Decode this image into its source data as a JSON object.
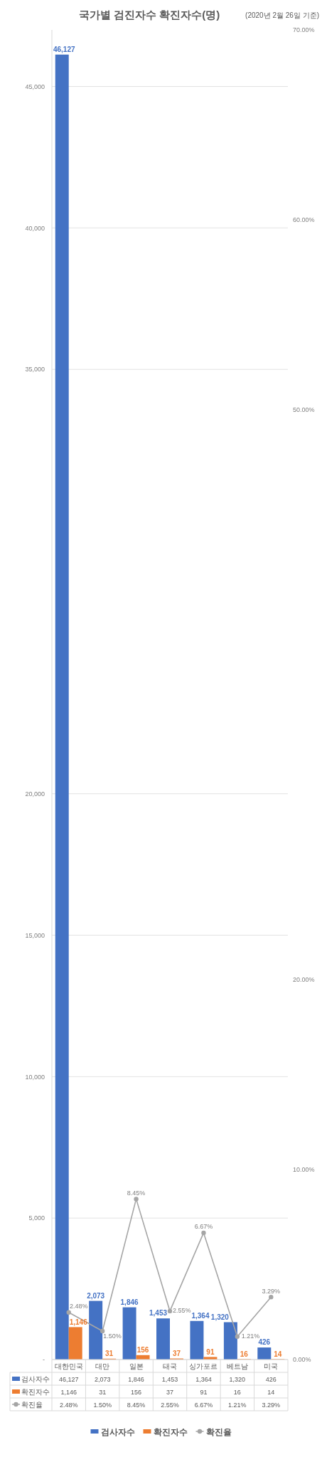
{
  "chart_data": {
    "type": "bar",
    "title": "국가별 검진자수 확진자수(명)",
    "subtitle": "(2020년 2월 26일 기준)",
    "categories": [
      "대한민국",
      "대만",
      "일본",
      "태국",
      "싱가포르",
      "베트남",
      "미국"
    ],
    "series": [
      {
        "name": "검사자수",
        "color": "#4472c4",
        "values": [
          46127,
          2073,
          1846,
          1453,
          1364,
          1320,
          426
        ],
        "value_labels": [
          "46,127",
          "2,073",
          "1,846",
          "1,453",
          "1,364",
          "1,320",
          "426"
        ]
      },
      {
        "name": "확진자수",
        "color": "#ed7d31",
        "values": [
          1146,
          31,
          156,
          37,
          91,
          16,
          14
        ],
        "value_labels": [
          "1,146",
          "31",
          "156",
          "37",
          "91",
          "16",
          "14"
        ]
      },
      {
        "name": "확진율",
        "type": "line",
        "axis": "y2",
        "color": "#a5a5a5",
        "marker": "circle",
        "values": [
          2.48,
          1.5,
          8.45,
          2.55,
          6.67,
          1.21,
          3.29
        ],
        "value_labels": [
          "2.48%",
          "1.50%",
          "8.45%",
          "2.55%",
          "6.67%",
          "1.21%",
          "3.29%"
        ]
      }
    ],
    "ylim": [
      0,
      47000
    ],
    "yticks": [
      {
        "value": 0,
        "label": "-"
      },
      {
        "value": 5000,
        "label": "5,000"
      },
      {
        "value": 10000,
        "label": "10,000"
      },
      {
        "value": 15000,
        "label": "15,000"
      },
      {
        "value": 20000,
        "label": "20,000"
      },
      {
        "value": 35000,
        "label": "35,000"
      },
      {
        "value": 40000,
        "label": "40,000"
      },
      {
        "value": 45000,
        "label": "45,000"
      }
    ],
    "y2lim": [
      0,
      70
    ],
    "y2ticks": [
      {
        "value": 0,
        "label": "0.00%"
      },
      {
        "value": 10,
        "label": "10.00%"
      },
      {
        "value": 20,
        "label": "20.00%"
      },
      {
        "value": 50,
        "label": "50.00%"
      },
      {
        "value": 60,
        "label": "60.00%"
      },
      {
        "value": 70,
        "label": "70.00%"
      }
    ],
    "grid": "y",
    "legend": "bottom"
  }
}
